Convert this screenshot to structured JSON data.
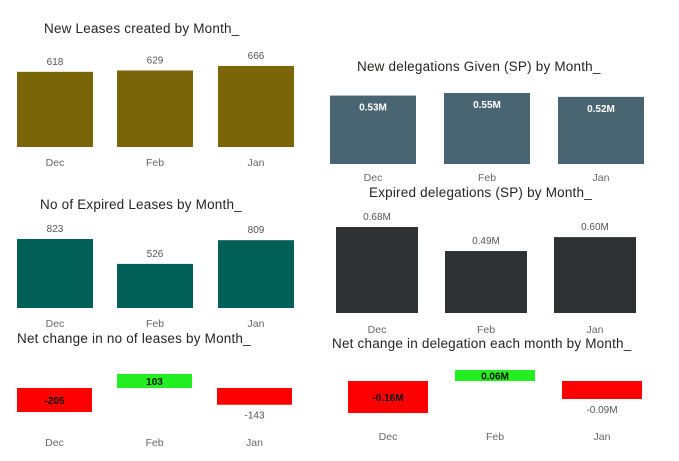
{
  "chart_data": [
    {
      "type": "bar",
      "title": "New Leases created by Month_",
      "categories": [
        "Dec",
        "Feb",
        "Jan"
      ],
      "values": [
        618,
        629,
        666
      ],
      "data_labels": [
        "618",
        "629",
        "666"
      ],
      "color": "#7a6509",
      "label_position": "outside",
      "ylim": [
        0,
        666
      ]
    },
    {
      "type": "bar",
      "title": "New delegations Given (SP) by Month_",
      "categories": [
        "Dec",
        "Feb",
        "Jan"
      ],
      "values": [
        0.53,
        0.55,
        0.52
      ],
      "data_labels": [
        "0.53M",
        "0.55M",
        "0.52M"
      ],
      "color": "#4a6572",
      "label_position": "inside",
      "ylim": [
        0,
        0.55
      ]
    },
    {
      "type": "bar",
      "title": "No of Expired Leases by Month_",
      "categories": [
        "Dec",
        "Feb",
        "Jan"
      ],
      "values": [
        823,
        526,
        809
      ],
      "data_labels": [
        "823",
        "526",
        "809"
      ],
      "color": "#005f56",
      "label_position": "outside",
      "ylim": [
        0,
        823
      ]
    },
    {
      "type": "bar",
      "title": "Expired delegations (SP) by Month_",
      "categories": [
        "Dec",
        "Feb",
        "Jan"
      ],
      "values": [
        0.68,
        0.49,
        0.6
      ],
      "data_labels": [
        "0.68M",
        "0.49M",
        "0.60M"
      ],
      "color": "#2f3233",
      "label_position": "outside",
      "ylim": [
        0,
        0.68
      ]
    },
    {
      "type": "bar",
      "title": "Net change in no of leases by Month_",
      "categories": [
        "Dec",
        "Feb",
        "Jan"
      ],
      "values": [
        -205,
        103,
        -143
      ],
      "data_labels": [
        "-205",
        "103",
        "-143"
      ],
      "positive_color": "#22ee22",
      "negative_color": "#ff0000",
      "ylim": [
        -205,
        103
      ]
    },
    {
      "type": "bar",
      "title": "Net change in delegation each month by Month_",
      "categories": [
        "Dec",
        "Feb",
        "Jan"
      ],
      "values": [
        -0.16,
        0.06,
        -0.09
      ],
      "data_labels": [
        "-0.16M",
        "0.06M",
        "-0.09M"
      ],
      "positive_color": "#22ee22",
      "negative_color": "#ff0000",
      "ylim": [
        -0.16,
        0.06
      ]
    }
  ]
}
